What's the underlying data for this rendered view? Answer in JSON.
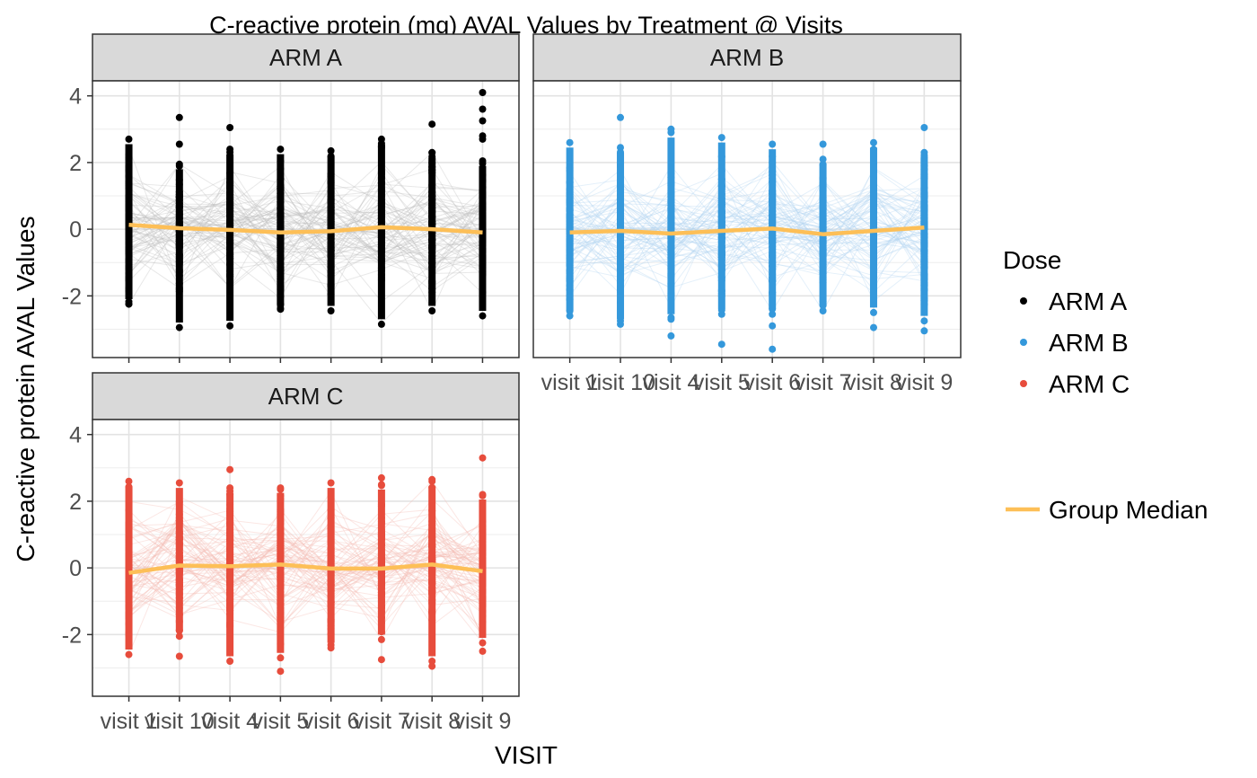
{
  "chart_data": {
    "type": "scatter",
    "title": "C-reactive protein (mg) AVAL Values by Treatment @ Visits",
    "xlabel": "VISIT",
    "ylabel": "C-reactive protein AVAL Values",
    "categories": [
      "visit 1",
      "visit 10",
      "visit 4",
      "visit 5",
      "visit 6",
      "visit 7",
      "visit 8",
      "visit 9"
    ],
    "ylim": [
      -3.85,
      4.45
    ],
    "yticks": [
      -2,
      0,
      2,
      4
    ],
    "grid": true,
    "legend_position": "right",
    "legend": {
      "dose_title": "Dose",
      "median_label": "Group Median"
    },
    "median_color": "#FDBF57",
    "panels": [
      {
        "name": "ARM A",
        "color": "#000000",
        "line_color": "#BDBDBD",
        "median": [
          0.13,
          0.03,
          -0.02,
          -0.1,
          -0.06,
          0.06,
          0.0,
          -0.1
        ],
        "range": [
          [
            -2.25,
            2.7
          ],
          [
            -2.95,
            1.95
          ],
          [
            -2.9,
            2.4
          ],
          [
            -2.4,
            2.4
          ],
          [
            -2.45,
            2.35
          ],
          [
            -2.85,
            2.7
          ],
          [
            -2.45,
            2.3
          ],
          [
            -2.6,
            2.05
          ]
        ],
        "outliers": [
          [
            1,
            3.35
          ],
          [
            1,
            2.55
          ],
          [
            2,
            3.05
          ],
          [
            6,
            3.15
          ],
          [
            7,
            4.1
          ],
          [
            7,
            3.6
          ],
          [
            7,
            3.25
          ],
          [
            7,
            2.8
          ],
          [
            7,
            2.7
          ]
        ]
      },
      {
        "name": "ARM B",
        "color": "#3498DB",
        "line_color": "#B3D4F2",
        "median": [
          -0.1,
          -0.05,
          -0.13,
          -0.05,
          0.02,
          -0.15,
          -0.05,
          0.05
        ],
        "range": [
          [
            -2.6,
            2.6
          ],
          [
            -2.85,
            2.45
          ],
          [
            -2.7,
            2.9
          ],
          [
            -2.55,
            2.75
          ],
          [
            -2.55,
            2.55
          ],
          [
            -2.45,
            2.1
          ],
          [
            -2.5,
            2.6
          ],
          [
            -2.75,
            2.3
          ]
        ],
        "outliers": [
          [
            1,
            3.35
          ],
          [
            2,
            3.0
          ],
          [
            2,
            -3.2
          ],
          [
            3,
            -3.45
          ],
          [
            4,
            -3.6
          ],
          [
            4,
            -2.9
          ],
          [
            5,
            2.55
          ],
          [
            6,
            -2.95
          ],
          [
            7,
            3.05
          ],
          [
            7,
            -3.05
          ]
        ]
      },
      {
        "name": "ARM C",
        "color": "#E74C3C",
        "line_color": "#F4B9B2",
        "median": [
          -0.15,
          0.07,
          0.05,
          0.1,
          -0.02,
          -0.02,
          0.1,
          -0.1
        ],
        "range": [
          [
            -2.6,
            2.6
          ],
          [
            -2.05,
            2.55
          ],
          [
            -2.8,
            2.4
          ],
          [
            -2.7,
            2.4
          ],
          [
            -2.4,
            2.55
          ],
          [
            -2.15,
            2.5
          ],
          [
            -2.8,
            2.6
          ],
          [
            -2.25,
            2.2
          ]
        ],
        "outliers": [
          [
            1,
            -2.65
          ],
          [
            2,
            2.95
          ],
          [
            3,
            -3.1
          ],
          [
            5,
            2.7
          ],
          [
            5,
            -2.75
          ],
          [
            6,
            2.65
          ],
          [
            6,
            -2.95
          ],
          [
            7,
            3.3
          ],
          [
            7,
            -2.5
          ]
        ]
      }
    ]
  }
}
